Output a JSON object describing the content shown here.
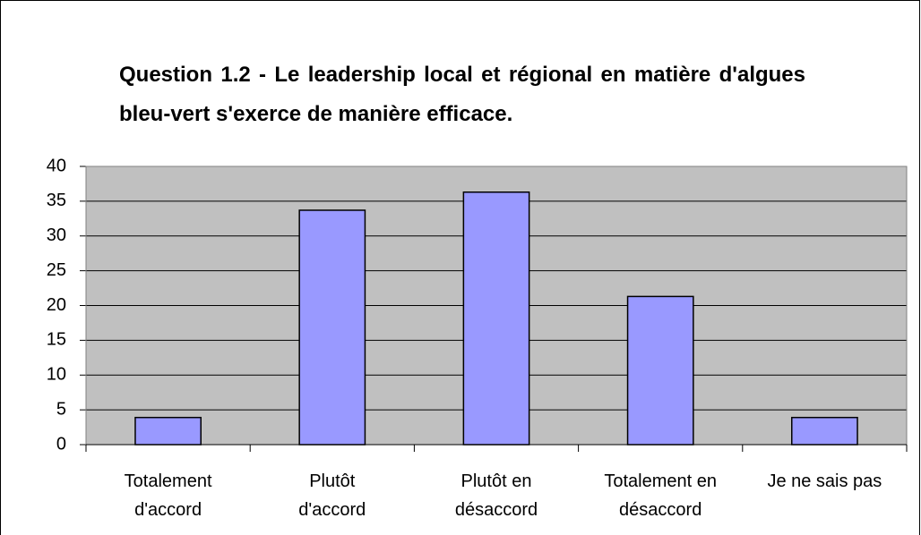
{
  "chart_data": {
    "type": "bar",
    "title": "Question 1.2 - Le leadership local et régional en matière d'algues bleu-vert s'exerce de manière efficace.",
    "categories": [
      "Totalement d'accord",
      "Plutôt d'accord",
      "Plutôt en désaccord",
      "Totalement en désaccord",
      "Je ne sais pas"
    ],
    "values": [
      3.9,
      33.7,
      36.3,
      21.3,
      3.9
    ],
    "color": "#9999ff",
    "ylim": [
      0,
      40
    ],
    "yticks": [
      0,
      5,
      10,
      15,
      20,
      25,
      30,
      35,
      40
    ],
    "grid": true
  }
}
